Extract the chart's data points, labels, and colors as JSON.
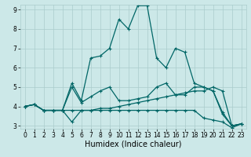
{
  "xlabel": "Humidex (Indice chaleur)",
  "bg_color": "#cce8e8",
  "grid_color": "#aacccc",
  "line_color": "#006666",
  "x_min": 0,
  "x_max": 23,
  "y_min": 3,
  "y_max": 9,
  "series": [
    [
      4.0,
      4.1,
      3.8,
      3.8,
      3.8,
      5.2,
      4.3,
      6.5,
      6.6,
      7.0,
      8.5,
      8.0,
      9.2,
      9.2,
      6.5,
      6.0,
      7.0,
      6.8,
      5.2,
      5.0,
      4.8,
      3.6,
      3.0,
      3.1
    ],
    [
      4.0,
      4.1,
      3.8,
      3.8,
      3.8,
      5.0,
      4.2,
      4.5,
      4.8,
      5.0,
      4.3,
      4.3,
      4.4,
      4.5,
      5.0,
      5.2,
      4.6,
      4.6,
      5.0,
      5.0,
      4.8,
      3.7,
      3.0,
      3.1
    ],
    [
      4.0,
      4.1,
      3.8,
      3.8,
      3.8,
      3.8,
      3.8,
      3.8,
      3.9,
      3.9,
      4.0,
      4.1,
      4.2,
      4.3,
      4.4,
      4.5,
      4.6,
      4.7,
      4.8,
      4.8,
      5.0,
      4.8,
      3.0,
      3.1
    ],
    [
      4.0,
      4.1,
      3.8,
      3.8,
      3.8,
      3.2,
      3.8,
      3.8,
      3.8,
      3.8,
      3.8,
      3.8,
      3.8,
      3.8,
      3.8,
      3.8,
      3.8,
      3.8,
      3.8,
      3.4,
      3.3,
      3.2,
      2.9,
      3.1
    ]
  ],
  "marker": "+",
  "markersize": 2.5,
  "linewidth": 0.9,
  "xlabel_fontsize": 7,
  "tick_fontsize": 5.5
}
